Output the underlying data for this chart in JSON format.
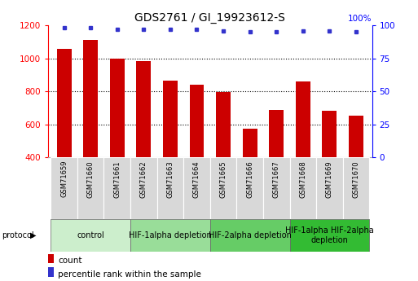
{
  "title": "GDS2761 / GI_19923612-S",
  "samples": [
    "GSM71659",
    "GSM71660",
    "GSM71661",
    "GSM71662",
    "GSM71663",
    "GSM71664",
    "GSM71665",
    "GSM71666",
    "GSM71667",
    "GSM71668",
    "GSM71669",
    "GSM71670"
  ],
  "counts": [
    1055,
    1110,
    1000,
    985,
    865,
    840,
    795,
    575,
    685,
    860,
    680,
    655
  ],
  "percentiles": [
    98,
    98,
    97,
    97,
    97,
    97,
    96,
    95,
    95,
    96,
    96,
    95
  ],
  "ylim_left": [
    400,
    1200
  ],
  "ylim_right": [
    0,
    100
  ],
  "yticks_left": [
    400,
    600,
    800,
    1000,
    1200
  ],
  "yticks_right": [
    0,
    25,
    50,
    75,
    100
  ],
  "bar_color": "#cc0000",
  "dot_color": "#3333cc",
  "bar_width": 0.55,
  "protocol_groups": [
    {
      "label": "control",
      "start": 0,
      "end": 3,
      "color": "#cceecc"
    },
    {
      "label": "HIF-1alpha depletion",
      "start": 3,
      "end": 6,
      "color": "#99dd99"
    },
    {
      "label": "HIF-2alpha depletion",
      "start": 6,
      "end": 9,
      "color": "#66cc66"
    },
    {
      "label": "HIF-1alpha HIF-2alpha\ndepletion",
      "start": 9,
      "end": 12,
      "color": "#33bb33"
    }
  ],
  "legend_count_color": "#cc0000",
  "legend_percentile_color": "#3333cc",
  "title_fontsize": 10,
  "tick_fontsize": 7.5,
  "sample_fontsize": 6,
  "protocol_fontsize": 7,
  "legend_fontsize": 7.5,
  "sample_box_color": "#d8d8d8",
  "pct_right_label": "100%"
}
